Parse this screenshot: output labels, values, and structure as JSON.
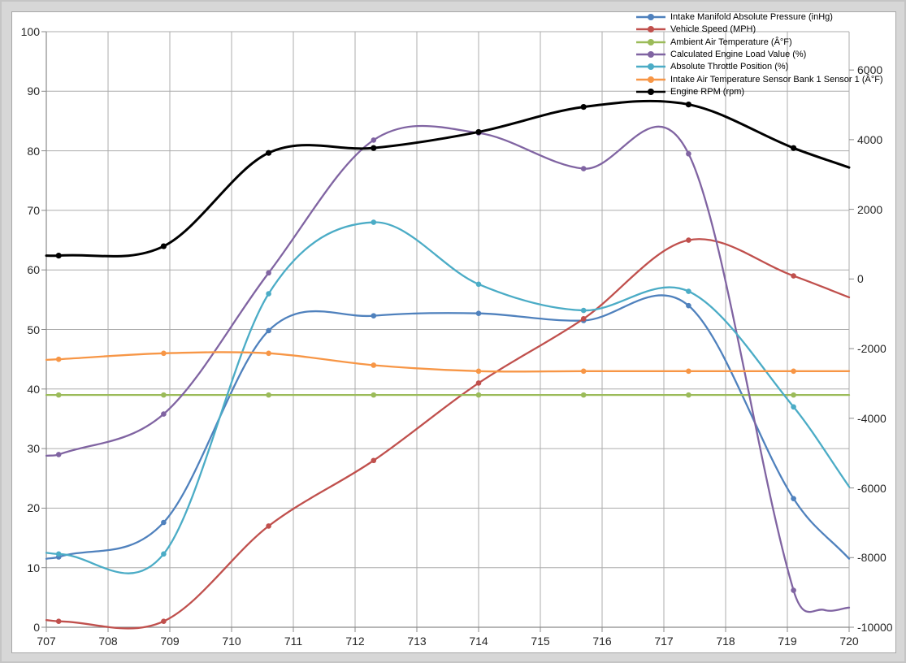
{
  "window": {
    "background": "#d7d7d7",
    "card_background": "#ffffff",
    "gridline_color": "#acacac",
    "axis_line_color": "#8a8a8a",
    "label_color": "#262626"
  },
  "chart_data": {
    "type": "line",
    "title": "",
    "xlabel": "",
    "ylabel": "",
    "grid": true,
    "legend_position": "top-right",
    "x_axis": {
      "ticks": [
        707,
        708,
        709,
        710,
        711,
        712,
        713,
        714,
        715,
        716,
        717,
        718,
        719,
        720
      ],
      "min": 707,
      "max": 720
    },
    "left_axis": {
      "ticks": [
        100,
        90,
        80,
        70,
        60,
        50,
        40,
        30,
        20,
        10,
        0
      ],
      "min": 0,
      "max": 100
    },
    "right_axis": {
      "ticks": [
        6000,
        4000,
        2000,
        0,
        -2000,
        -4000,
        -6000,
        -8000,
        -10000
      ],
      "bottom_value": -10000,
      "top_value": 7100
    },
    "sample_x": [
      707.2,
      708.9,
      710.6,
      712.3,
      714,
      715.7,
      717.4,
      719.1
    ],
    "series": [
      {
        "name": "Intake Manifold Absolute Pressure (inHg)",
        "color": "#4F81BD",
        "axis": "left",
        "line_width": 2.3,
        "marker_radius": 3.3,
        "values": [
          11.8,
          17.6,
          49.8,
          52.3,
          52.7,
          51.5,
          54,
          21.6
        ],
        "edge_start": {
          "x": 707,
          "value": 11.5
        },
        "edge_end": {
          "x": 720,
          "value": 11.5
        },
        "extra_points": []
      },
      {
        "name": "Vehicle Speed (MPH)",
        "color": "#C0504D",
        "axis": "left",
        "line_width": 2.3,
        "marker_radius": 3.3,
        "values": [
          1,
          1,
          17,
          28,
          41,
          51.8,
          65,
          59
        ],
        "edge_start": {
          "x": 707,
          "value": 1.2
        },
        "edge_end": {
          "x": 720,
          "value": 55.4
        },
        "extra_points": []
      },
      {
        "name": "Ambient Air Temperature (Â°F)",
        "color": "#9BBB59",
        "axis": "left",
        "line_width": 2.3,
        "marker_radius": 3.3,
        "values": [
          39,
          39,
          39,
          39,
          39,
          39,
          39,
          39
        ],
        "edge_start": {
          "x": 707,
          "value": 39
        },
        "edge_end": {
          "x": 720,
          "value": 39
        },
        "extra_points": []
      },
      {
        "name": "Calculated Engine Load Value (%)",
        "color": "#8064A2",
        "axis": "left",
        "line_width": 2.3,
        "marker_radius": 3.3,
        "values": [
          29,
          35.8,
          59.5,
          81.8,
          83,
          77,
          79.5,
          6.2
        ],
        "edge_start": {
          "x": 707,
          "value": 28.8
        },
        "edge_end": {
          "x": 720,
          "value": 3.3
        },
        "extra_points": [
          {
            "x": 719.6,
            "value": 2.9
          }
        ]
      },
      {
        "name": "Absolute Throttle Position (%)",
        "color": "#4BACC6",
        "axis": "left",
        "line_width": 2.3,
        "marker_radius": 3.3,
        "values": [
          12.3,
          12.3,
          56,
          68,
          57.6,
          53.2,
          56.4,
          37
        ],
        "edge_start": {
          "x": 707,
          "value": 12.5
        },
        "edge_end": {
          "x": 720,
          "value": 23.6
        },
        "extra_points": []
      },
      {
        "name": "Intake Air Temperature Sensor Bank 1 Sensor 1 (Â°F)",
        "color": "#F79646",
        "axis": "left",
        "line_width": 2.3,
        "marker_radius": 3.3,
        "values": [
          45,
          46,
          46,
          44,
          43,
          43,
          43,
          43
        ],
        "edge_start": {
          "x": 707,
          "value": 44.9
        },
        "edge_end": {
          "x": 720,
          "value": 43
        },
        "extra_points": []
      },
      {
        "name": "Engine RPM (rpm)",
        "color": "#000000",
        "axis": "right",
        "line_width": 3,
        "marker_radius": 3.6,
        "values": [
          670,
          940,
          3620,
          3760,
          4220,
          4940,
          5010,
          3760
        ],
        "edge_start": {
          "x": 707,
          "value": 670
        },
        "edge_end": {
          "x": 720,
          "value": 3200
        },
        "extra_points": []
      }
    ]
  }
}
